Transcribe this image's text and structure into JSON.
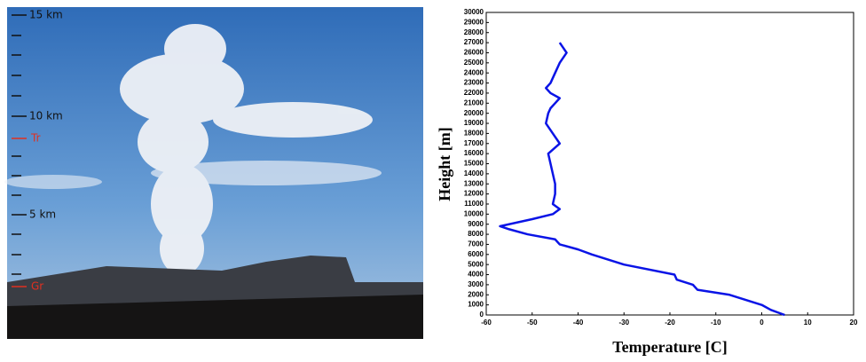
{
  "photo": {
    "labels": [
      "15 km",
      "10 km",
      "Tr",
      "5 km",
      "Gr"
    ]
  },
  "chart_data": {
    "type": "line",
    "xlabel": "Temperature [C]",
    "ylabel": "Height [m]",
    "color": "#0a14e6",
    "x": [
      5,
      2,
      0,
      -7,
      -14,
      -15,
      -18.5,
      -19,
      -30,
      -37,
      -40,
      -44,
      -45,
      -51,
      -55,
      -57,
      -50,
      -45.5,
      -44,
      -45.5,
      -45,
      -45,
      -45.5,
      -46,
      -46.5,
      -44,
      -45.5,
      -47,
      -46.5,
      -46,
      -45,
      -44,
      -46,
      -47,
      -46,
      -45,
      -44,
      -42.5,
      -44
    ],
    "y": [
      0,
      500,
      1000,
      2000,
      2500,
      3000,
      3500,
      4000,
      5000,
      6000,
      6500,
      7000,
      7500,
      8000,
      8500,
      8800,
      9500,
      10000,
      10500,
      11000,
      12000,
      13000,
      14000,
      15000,
      16000,
      17000,
      18000,
      19000,
      20000,
      20500,
      21000,
      21500,
      22000,
      22500,
      23000,
      24000,
      25000,
      26000,
      27000
    ],
    "xlim": [
      -60,
      20
    ],
    "xticks": [
      -60,
      -50,
      -40,
      -30,
      -20,
      -10,
      0,
      10,
      20
    ],
    "ylim": [
      0,
      30000
    ],
    "yticks": [
      0,
      1000,
      2000,
      3000,
      4000,
      5000,
      6000,
      7000,
      8000,
      9000,
      10000,
      11000,
      12000,
      13000,
      14000,
      15000,
      16000,
      17000,
      18000,
      19000,
      20000,
      21000,
      22000,
      23000,
      24000,
      25000,
      26000,
      27000,
      28000,
      29000,
      30000
    ]
  }
}
